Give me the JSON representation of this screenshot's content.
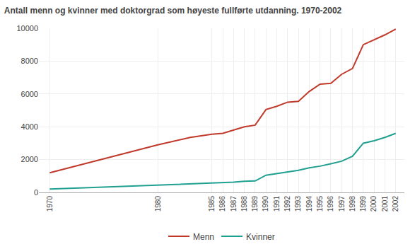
{
  "chart_data": {
    "type": "line",
    "title": "Antall menn og kvinner med doktorgrad som høyeste fullførte utdanning. 1970-2002",
    "x": [
      1970,
      1980,
      1983,
      1984,
      1985,
      1986,
      1987,
      1988,
      1989,
      1990,
      1991,
      1992,
      1993,
      1994,
      1995,
      1996,
      1997,
      1998,
      1999,
      2000,
      2001,
      2002
    ],
    "series": [
      {
        "name": "Menn",
        "color": "#c0392b",
        "values": [
          1200,
          2900,
          3350,
          3450,
          3550,
          3600,
          3800,
          4000,
          4100,
          5050,
          5250,
          5500,
          5550,
          6150,
          6600,
          6650,
          7200,
          7550,
          9000,
          9300,
          9600,
          9950
        ]
      },
      {
        "name": "Kvinner",
        "color": "#20a090",
        "values": [
          200,
          450,
          520,
          540,
          560,
          580,
          620,
          680,
          700,
          1050,
          1150,
          1250,
          1350,
          1500,
          1600,
          1750,
          1900,
          2200,
          3000,
          3150,
          3350,
          3600
        ]
      }
    ],
    "xlim": [
      1969.0,
      2002.8
    ],
    "xticks": [
      1970,
      1980,
      1985,
      1986,
      1987,
      1988,
      1989,
      1990,
      1991,
      1992,
      1993,
      1994,
      1995,
      1996,
      1997,
      1998,
      1999,
      2000,
      2001,
      2002
    ],
    "ylim": [
      0,
      10000
    ],
    "yticks": [
      0,
      2000,
      4000,
      6000,
      8000,
      10000
    ],
    "grid": true,
    "legend": "bottom"
  }
}
